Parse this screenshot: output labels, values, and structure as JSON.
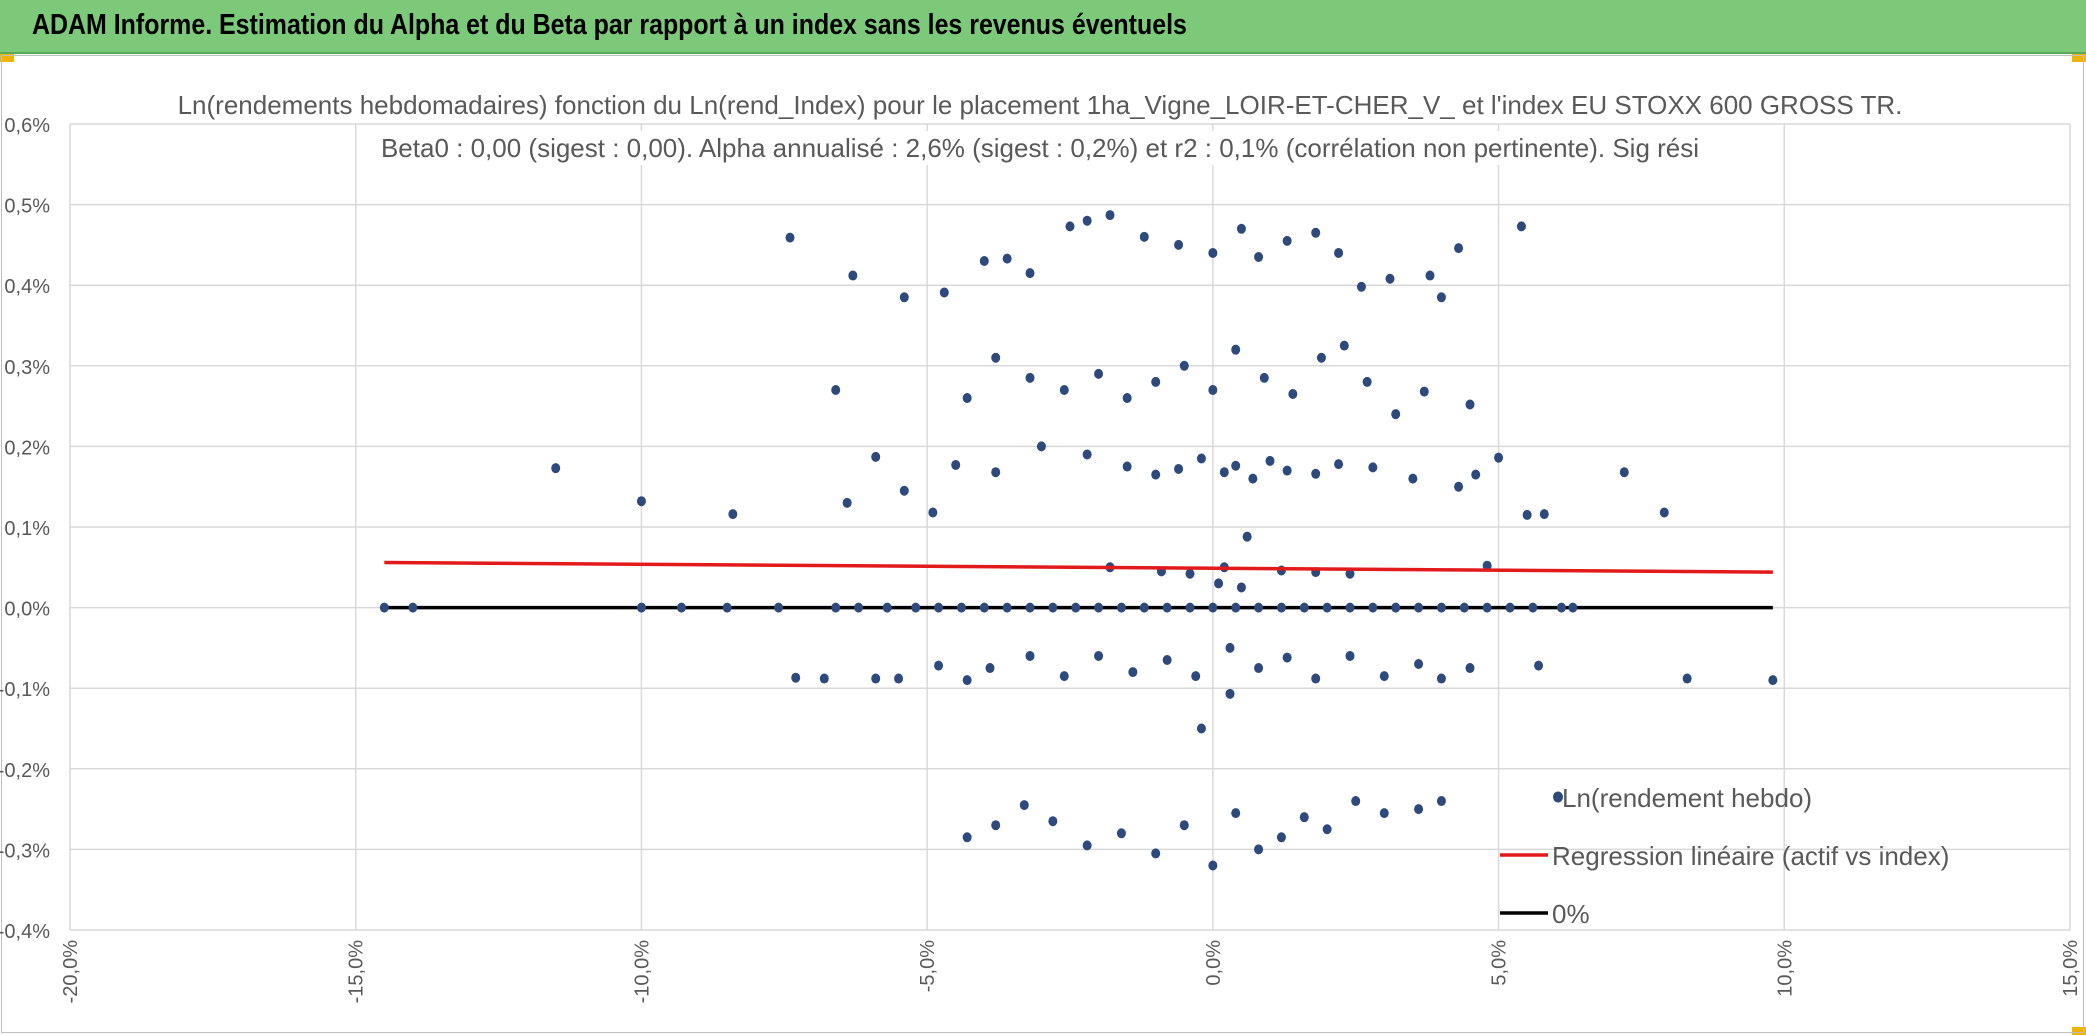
{
  "header": {
    "title": "ADAM Informe. Estimation du Alpha et du Beta par rapport à un index sans les revenus éventuels",
    "color": "#7dc97a"
  },
  "chart_data": {
    "type": "scatter",
    "title_line1": "Ln(rendements hebdomadaires) fonction du Ln(rend_Index) pour le placement 1ha_Vigne_LOIR-ET-CHER_V_ et l'index EU STOXX 600 GROSS TR.",
    "title_line2": "Beta0 : 0,00 (sigest : 0,00). Alpha annualisé : 2,6% (sigest : 0,2%) et r2 : 0,1% (corrélation non pertinente). Sig rési",
    "xlabel": "",
    "ylabel": "",
    "xlim": [
      -20,
      15
    ],
    "ylim": [
      -0.4,
      0.6
    ],
    "x_ticks": [
      "-20,0%",
      "-15,0%",
      "-10,0%",
      "-5,0%",
      "0,0%",
      "5,0%",
      "10,0%",
      "15,0%"
    ],
    "y_ticks": [
      "0,6%",
      "0,5%",
      "0,4%",
      "0,3%",
      "0,2%",
      "0,1%",
      "0,0%",
      "-0,1%",
      "-0,2%",
      "-0,3%",
      "-0,4%"
    ],
    "grid": true,
    "legend_position": "bottom-right",
    "colors": {
      "scatter": "#2e4a7d",
      "regression": "#e31a1c",
      "zero": "#000000",
      "grid": "#d9d9d9"
    },
    "series": [
      {
        "name": "Ln(rendement hebdo)",
        "kind": "scatter",
        "points": [
          [
            -14.5,
            0
          ],
          [
            -14.0,
            0
          ],
          [
            -10.0,
            0
          ],
          [
            -9.3,
            0
          ],
          [
            -8.5,
            0
          ],
          [
            -7.6,
            0
          ],
          [
            -6.6,
            0
          ],
          [
            -6.2,
            0
          ],
          [
            -5.7,
            0
          ],
          [
            -5.2,
            0
          ],
          [
            -4.8,
            0
          ],
          [
            -4.4,
            0
          ],
          [
            -4.0,
            0
          ],
          [
            -3.6,
            0
          ],
          [
            -3.2,
            0
          ],
          [
            -2.8,
            0
          ],
          [
            -2.4,
            0
          ],
          [
            -2.0,
            0
          ],
          [
            -1.6,
            0
          ],
          [
            -1.2,
            0
          ],
          [
            -0.8,
            0
          ],
          [
            -0.4,
            0
          ],
          [
            0.0,
            0
          ],
          [
            0.4,
            0
          ],
          [
            0.8,
            0
          ],
          [
            1.2,
            0
          ],
          [
            1.6,
            0
          ],
          [
            2.0,
            0
          ],
          [
            2.4,
            0
          ],
          [
            2.8,
            0
          ],
          [
            3.2,
            0
          ],
          [
            3.6,
            0
          ],
          [
            4.0,
            0
          ],
          [
            4.4,
            0
          ],
          [
            4.8,
            0
          ],
          [
            5.2,
            0
          ],
          [
            5.6,
            0
          ],
          [
            6.1,
            0
          ],
          [
            6.3,
            0
          ],
          [
            -11.5,
            0.173
          ],
          [
            -10.0,
            0.132
          ],
          [
            -8.4,
            0.116
          ],
          [
            -5.9,
            0.187
          ],
          [
            -6.4,
            0.13
          ],
          [
            -5.4,
            0.145
          ],
          [
            -4.9,
            0.118
          ],
          [
            -4.5,
            0.177
          ],
          [
            -3.8,
            0.168
          ],
          [
            -3.0,
            0.2
          ],
          [
            -2.2,
            0.19
          ],
          [
            -1.5,
            0.175
          ],
          [
            -1.0,
            0.165
          ],
          [
            -0.6,
            0.172
          ],
          [
            -0.2,
            0.185
          ],
          [
            0.2,
            0.168
          ],
          [
            0.4,
            0.176
          ],
          [
            0.7,
            0.16
          ],
          [
            1.0,
            0.182
          ],
          [
            1.3,
            0.17
          ],
          [
            1.8,
            0.166
          ],
          [
            2.2,
            0.178
          ],
          [
            2.8,
            0.174
          ],
          [
            3.5,
            0.16
          ],
          [
            4.3,
            0.15
          ],
          [
            4.6,
            0.165
          ],
          [
            5.0,
            0.186
          ],
          [
            5.5,
            0.115
          ],
          [
            5.8,
            0.116
          ],
          [
            7.2,
            0.168
          ],
          [
            7.9,
            0.118
          ],
          [
            -7.4,
            0.459
          ],
          [
            -6.3,
            0.412
          ],
          [
            -5.4,
            0.385
          ],
          [
            -4.7,
            0.391
          ],
          [
            -4.0,
            0.43
          ],
          [
            -3.6,
            0.433
          ],
          [
            -3.2,
            0.415
          ],
          [
            -2.5,
            0.473
          ],
          [
            -2.2,
            0.48
          ],
          [
            -1.8,
            0.487
          ],
          [
            -1.2,
            0.46
          ],
          [
            -0.6,
            0.45
          ],
          [
            0.0,
            0.44
          ],
          [
            0.5,
            0.47
          ],
          [
            0.8,
            0.435
          ],
          [
            1.3,
            0.455
          ],
          [
            1.8,
            0.465
          ],
          [
            2.2,
            0.44
          ],
          [
            2.6,
            0.398
          ],
          [
            3.1,
            0.408
          ],
          [
            3.8,
            0.412
          ],
          [
            4.0,
            0.385
          ],
          [
            4.3,
            0.446
          ],
          [
            5.4,
            0.473
          ],
          [
            -6.6,
            0.27
          ],
          [
            -4.3,
            0.26
          ],
          [
            -3.8,
            0.31
          ],
          [
            -3.2,
            0.285
          ],
          [
            -2.6,
            0.27
          ],
          [
            -2.0,
            0.29
          ],
          [
            -1.5,
            0.26
          ],
          [
            -1.0,
            0.28
          ],
          [
            -0.5,
            0.3
          ],
          [
            0.0,
            0.27
          ],
          [
            0.4,
            0.32
          ],
          [
            0.9,
            0.285
          ],
          [
            1.4,
            0.265
          ],
          [
            1.9,
            0.31
          ],
          [
            2.3,
            0.325
          ],
          [
            2.7,
            0.28
          ],
          [
            3.2,
            0.24
          ],
          [
            3.7,
            0.268
          ],
          [
            4.5,
            0.252
          ],
          [
            -7.3,
            -0.087
          ],
          [
            -6.8,
            -0.088
          ],
          [
            -5.9,
            -0.088
          ],
          [
            -5.5,
            -0.088
          ],
          [
            -4.8,
            -0.072
          ],
          [
            -4.3,
            -0.09
          ],
          [
            -3.9,
            -0.075
          ],
          [
            -3.2,
            -0.06
          ],
          [
            -2.6,
            -0.085
          ],
          [
            -2.0,
            -0.06
          ],
          [
            -1.4,
            -0.08
          ],
          [
            -0.8,
            -0.065
          ],
          [
            -0.3,
            -0.085
          ],
          [
            0.3,
            -0.05
          ],
          [
            0.8,
            -0.075
          ],
          [
            1.3,
            -0.062
          ],
          [
            1.8,
            -0.088
          ],
          [
            2.4,
            -0.06
          ],
          [
            3.0,
            -0.085
          ],
          [
            3.6,
            -0.07
          ],
          [
            4.0,
            -0.088
          ],
          [
            4.5,
            -0.075
          ],
          [
            5.7,
            -0.072
          ],
          [
            8.3,
            -0.088
          ],
          [
            9.8,
            -0.09
          ],
          [
            -0.2,
            -0.15
          ],
          [
            0.3,
            -0.107
          ],
          [
            -4.3,
            -0.285
          ],
          [
            -3.8,
            -0.27
          ],
          [
            -3.3,
            -0.245
          ],
          [
            -2.8,
            -0.265
          ],
          [
            -2.2,
            -0.295
          ],
          [
            -1.6,
            -0.28
          ],
          [
            -1.0,
            -0.305
          ],
          [
            -0.5,
            -0.27
          ],
          [
            0.0,
            -0.32
          ],
          [
            0.4,
            -0.255
          ],
          [
            0.8,
            -0.3
          ],
          [
            1.2,
            -0.285
          ],
          [
            1.6,
            -0.26
          ],
          [
            2.0,
            -0.275
          ],
          [
            2.5,
            -0.24
          ],
          [
            3.0,
            -0.255
          ],
          [
            3.6,
            -0.25
          ],
          [
            4.0,
            -0.24
          ],
          [
            -1.8,
            0.05
          ],
          [
            -0.9,
            0.045
          ],
          [
            -0.4,
            0.042
          ],
          [
            0.2,
            0.05
          ],
          [
            0.6,
            0.088
          ],
          [
            1.2,
            0.046
          ],
          [
            1.8,
            0.044
          ],
          [
            2.4,
            0.042
          ],
          [
            4.8,
            0.052
          ],
          [
            0.1,
            0.03
          ],
          [
            0.5,
            0.025
          ]
        ]
      },
      {
        "name": "Regression linéaire (actif vs index)",
        "kind": "line",
        "points": [
          [
            -14.5,
            0.056
          ],
          [
            9.8,
            0.044
          ]
        ]
      },
      {
        "name": "0%",
        "kind": "line",
        "points": [
          [
            -14.5,
            0
          ],
          [
            9.8,
            0
          ]
        ]
      }
    ]
  }
}
